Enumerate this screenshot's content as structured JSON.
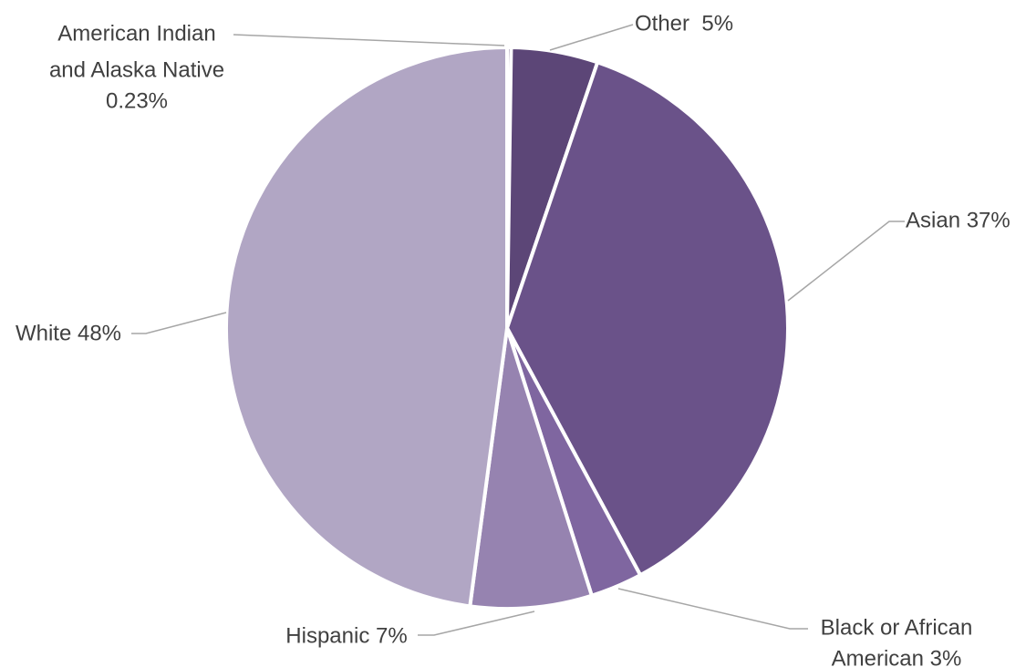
{
  "chart_data": {
    "type": "pie",
    "slices": [
      {
        "name": "American Indian and Alaska Native",
        "value": 0.23,
        "label_lines": [
          "American Indian",
          "and Alaska Native",
          "0.23%"
        ],
        "color": "#4F3B69"
      },
      {
        "name": "Other",
        "value": 5,
        "label_lines": [
          "Other  5%"
        ],
        "color": "#5C4677"
      },
      {
        "name": "Asian",
        "value": 37,
        "label_lines": [
          "Asian 37%"
        ],
        "color": "#6A5289"
      },
      {
        "name": "Black or African American",
        "value": 3,
        "label_lines": [
          "Black or African",
          "American 3%"
        ],
        "color": "#7F66A0"
      },
      {
        "name": "Hispanic",
        "value": 7,
        "label_lines": [
          "Hispanic 7%"
        ],
        "color": "#9683B0"
      },
      {
        "name": "White",
        "value": 48,
        "label_lines": [
          "White 48%"
        ],
        "color": "#B1A6C4"
      }
    ],
    "title": "",
    "legend": "none",
    "start_angle": "12 o'clock, clockwise"
  }
}
